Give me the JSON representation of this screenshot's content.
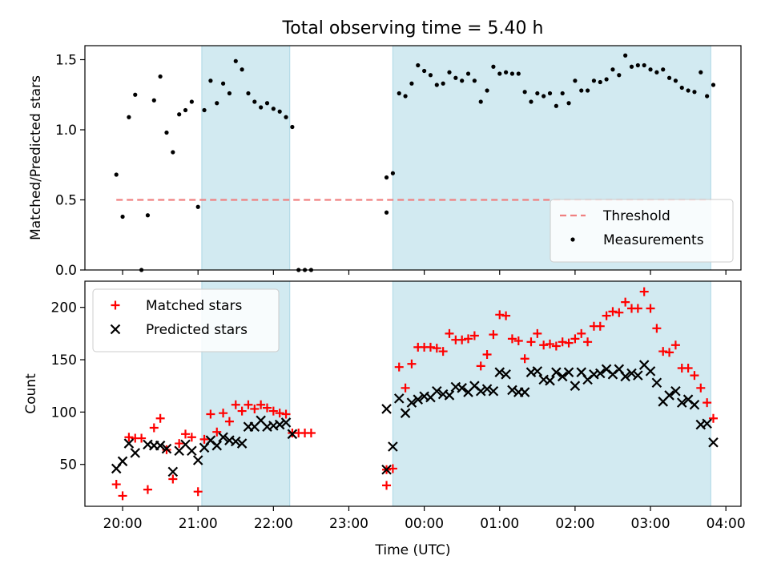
{
  "title": "Total observing time = 5.40 h",
  "colors": {
    "shade": "#add8e6",
    "threshold": "#f08080",
    "matched": "#ff0000",
    "predicted": "#000000",
    "measurement": "#000000"
  },
  "chart_data": [
    {
      "type": "scatter",
      "ylabel": "Matched/Predicted stars",
      "ylim": [
        0,
        1.6
      ],
      "yticks": [
        "0.0",
        "0.5",
        "1.0",
        "1.5"
      ],
      "xlim_hours": [
        19.5,
        28.2
      ],
      "shaded_spans": [
        [
          "21:03",
          "22:13"
        ],
        [
          "23:35",
          "03:48"
        ]
      ],
      "threshold": {
        "name": "Threshold",
        "value": 0.5,
        "x": [
          "19:55",
          "03:48"
        ]
      },
      "legend": {
        "position": "lower-right",
        "entries": [
          "Threshold",
          "Measurements"
        ]
      },
      "series": [
        {
          "name": "Measurements",
          "points": [
            [
              "19:55",
              0.68
            ],
            [
              "20:00",
              0.38
            ],
            [
              "20:05",
              1.09
            ],
            [
              "20:10",
              1.25
            ],
            [
              "20:15",
              0.0
            ],
            [
              "20:20",
              0.39
            ],
            [
              "20:25",
              1.21
            ],
            [
              "20:30",
              1.38
            ],
            [
              "20:35",
              0.98
            ],
            [
              "20:40",
              0.84
            ],
            [
              "20:45",
              1.11
            ],
            [
              "20:50",
              1.14
            ],
            [
              "20:55",
              1.2
            ],
            [
              "21:00",
              0.45
            ],
            [
              "21:05",
              1.14
            ],
            [
              "21:10",
              1.35
            ],
            [
              "21:15",
              1.19
            ],
            [
              "21:20",
              1.33
            ],
            [
              "21:25",
              1.26
            ],
            [
              "21:30",
              1.49
            ],
            [
              "21:35",
              1.43
            ],
            [
              "21:40",
              1.26
            ],
            [
              "21:45",
              1.2
            ],
            [
              "21:50",
              1.16
            ],
            [
              "21:55",
              1.19
            ],
            [
              "22:00",
              1.15
            ],
            [
              "22:05",
              1.13
            ],
            [
              "22:10",
              1.09
            ],
            [
              "22:15",
              1.02
            ],
            [
              "22:20",
              0.0
            ],
            [
              "22:25",
              0.0
            ],
            [
              "22:30",
              0.0
            ],
            [
              "23:30",
              0.66
            ],
            [
              "23:30",
              0.41
            ],
            [
              "23:35",
              0.69
            ],
            [
              "23:40",
              1.26
            ],
            [
              "23:45",
              1.24
            ],
            [
              "23:50",
              1.33
            ],
            [
              "23:55",
              1.46
            ],
            [
              "00:00",
              1.42
            ],
            [
              "00:05",
              1.39
            ],
            [
              "00:10",
              1.32
            ],
            [
              "00:15",
              1.33
            ],
            [
              "00:20",
              1.41
            ],
            [
              "00:25",
              1.37
            ],
            [
              "00:30",
              1.35
            ],
            [
              "00:35",
              1.4
            ],
            [
              "00:40",
              1.35
            ],
            [
              "00:45",
              1.2
            ],
            [
              "00:50",
              1.28
            ],
            [
              "00:55",
              1.45
            ],
            [
              "01:00",
              1.4
            ],
            [
              "01:05",
              1.41
            ],
            [
              "01:10",
              1.4
            ],
            [
              "01:15",
              1.4
            ],
            [
              "01:20",
              1.27
            ],
            [
              "01:25",
              1.2
            ],
            [
              "01:30",
              1.26
            ],
            [
              "01:35",
              1.24
            ],
            [
              "01:40",
              1.26
            ],
            [
              "01:45",
              1.17
            ],
            [
              "01:50",
              1.26
            ],
            [
              "01:55",
              1.19
            ],
            [
              "02:00",
              1.35
            ],
            [
              "02:05",
              1.28
            ],
            [
              "02:10",
              1.28
            ],
            [
              "02:15",
              1.35
            ],
            [
              "02:20",
              1.34
            ],
            [
              "02:25",
              1.36
            ],
            [
              "02:30",
              1.43
            ],
            [
              "02:35",
              1.39
            ],
            [
              "02:40",
              1.53
            ],
            [
              "02:45",
              1.45
            ],
            [
              "02:50",
              1.46
            ],
            [
              "02:55",
              1.46
            ],
            [
              "03:00",
              1.43
            ],
            [
              "03:05",
              1.41
            ],
            [
              "03:10",
              1.43
            ],
            [
              "03:15",
              1.37
            ],
            [
              "03:20",
              1.35
            ],
            [
              "03:25",
              1.3
            ],
            [
              "03:30",
              1.28
            ],
            [
              "03:35",
              1.27
            ],
            [
              "03:40",
              1.41
            ],
            [
              "03:45",
              1.24
            ],
            [
              "03:50",
              1.32
            ]
          ]
        }
      ]
    },
    {
      "type": "scatter",
      "ylabel": "Count",
      "xlabel": "Time (UTC)",
      "ylim": [
        10,
        225
      ],
      "yticks": [
        "50",
        "100",
        "150",
        "200"
      ],
      "xlim_hours": [
        19.5,
        28.2
      ],
      "xticks": [
        "20:00",
        "21:00",
        "22:00",
        "23:00",
        "00:00",
        "01:00",
        "02:00",
        "03:00",
        "04:00"
      ],
      "shaded_spans": [
        [
          "21:03",
          "22:13"
        ],
        [
          "23:35",
          "03:48"
        ]
      ],
      "legend": {
        "position": "upper-left",
        "entries": [
          "Matched stars",
          "Predicted stars"
        ]
      },
      "series": [
        {
          "name": "Matched stars",
          "marker": "+",
          "points": [
            [
              "19:55",
              31
            ],
            [
              "20:00",
              20
            ],
            [
              "20:05",
              76
            ],
            [
              "20:10",
              75
            ],
            [
              "20:15",
              75
            ],
            [
              "20:20",
              26
            ],
            [
              "20:25",
              85
            ],
            [
              "20:30",
              94
            ],
            [
              "20:35",
              64
            ],
            [
              "20:40",
              36
            ],
            [
              "20:45",
              70
            ],
            [
              "20:50",
              79
            ],
            [
              "20:55",
              76
            ],
            [
              "21:00",
              24
            ],
            [
              "21:05",
              74
            ],
            [
              "21:10",
              98
            ],
            [
              "21:15",
              81
            ],
            [
              "21:20",
              99
            ],
            [
              "21:25",
              91
            ],
            [
              "21:30",
              107
            ],
            [
              "21:35",
              101
            ],
            [
              "21:40",
              107
            ],
            [
              "21:45",
              103
            ],
            [
              "21:50",
              107
            ],
            [
              "21:55",
              104
            ],
            [
              "22:00",
              101
            ],
            [
              "22:05",
              99
            ],
            [
              "22:10",
              98
            ],
            [
              "22:15",
              80
            ],
            [
              "22:20",
              80
            ],
            [
              "22:25",
              80
            ],
            [
              "22:30",
              80
            ],
            [
              "23:30",
              30
            ],
            [
              "23:30",
              45
            ],
            [
              "23:35",
              46
            ],
            [
              "23:40",
              143
            ],
            [
              "23:45",
              123
            ],
            [
              "23:50",
              146
            ],
            [
              "23:55",
              162
            ],
            [
              "00:00",
              162
            ],
            [
              "00:05",
              162
            ],
            [
              "00:10",
              161
            ],
            [
              "00:15",
              158
            ],
            [
              "00:20",
              175
            ],
            [
              "00:25",
              169
            ],
            [
              "00:30",
              169
            ],
            [
              "00:35",
              170
            ],
            [
              "00:40",
              173
            ],
            [
              "00:45",
              144
            ],
            [
              "00:50",
              155
            ],
            [
              "00:55",
              174
            ],
            [
              "01:00",
              193
            ],
            [
              "01:05",
              192
            ],
            [
              "01:10",
              170
            ],
            [
              "01:15",
              168
            ],
            [
              "01:20",
              151
            ],
            [
              "01:25",
              167
            ],
            [
              "01:30",
              175
            ],
            [
              "01:35",
              164
            ],
            [
              "01:40",
              165
            ],
            [
              "01:45",
              163
            ],
            [
              "01:50",
              167
            ],
            [
              "01:55",
              166
            ],
            [
              "02:00",
              170
            ],
            [
              "02:05",
              175
            ],
            [
              "02:10",
              167
            ],
            [
              "02:15",
              182
            ],
            [
              "02:20",
              182
            ],
            [
              "02:25",
              192
            ],
            [
              "02:30",
              196
            ],
            [
              "02:35",
              195
            ],
            [
              "02:40",
              205
            ],
            [
              "02:45",
              199
            ],
            [
              "02:50",
              199
            ],
            [
              "02:55",
              215
            ],
            [
              "03:00",
              199
            ],
            [
              "03:05",
              180
            ],
            [
              "03:10",
              158
            ],
            [
              "03:15",
              157
            ],
            [
              "03:20",
              164
            ],
            [
              "03:25",
              142
            ],
            [
              "03:30",
              142
            ],
            [
              "03:35",
              135
            ],
            [
              "03:40",
              123
            ],
            [
              "03:45",
              109
            ],
            [
              "03:50",
              94
            ]
          ]
        },
        {
          "name": "Predicted stars",
          "marker": "x",
          "points": [
            [
              "19:55",
              46
            ],
            [
              "20:00",
              53
            ],
            [
              "20:05",
              70
            ],
            [
              "20:10",
              61
            ],
            [
              "20:20",
              69
            ],
            [
              "20:25",
              68
            ],
            [
              "20:30",
              68
            ],
            [
              "20:35",
              65
            ],
            [
              "20:40",
              43
            ],
            [
              "20:45",
              63
            ],
            [
              "20:50",
              69
            ],
            [
              "20:55",
              63
            ],
            [
              "21:00",
              54
            ],
            [
              "21:05",
              66
            ],
            [
              "21:10",
              73
            ],
            [
              "21:15",
              68
            ],
            [
              "21:20",
              76
            ],
            [
              "21:25",
              73
            ],
            [
              "21:30",
              72
            ],
            [
              "21:35",
              70
            ],
            [
              "21:40",
              86
            ],
            [
              "21:45",
              86
            ],
            [
              "21:50",
              92
            ],
            [
              "21:55",
              86
            ],
            [
              "22:00",
              87
            ],
            [
              "22:05",
              88
            ],
            [
              "22:10",
              90
            ],
            [
              "22:15",
              79
            ],
            [
              "23:30",
              103
            ],
            [
              "23:30",
              45
            ],
            [
              "23:35",
              67
            ],
            [
              "23:40",
              113
            ],
            [
              "23:45",
              99
            ],
            [
              "23:50",
              109
            ],
            [
              "23:55",
              112
            ],
            [
              "00:00",
              115
            ],
            [
              "00:05",
              114
            ],
            [
              "00:10",
              120
            ],
            [
              "00:15",
              117
            ],
            [
              "00:20",
              116
            ],
            [
              "00:25",
              124
            ],
            [
              "00:30",
              123
            ],
            [
              "00:35",
              119
            ],
            [
              "00:40",
              125
            ],
            [
              "00:45",
              120
            ],
            [
              "00:50",
              122
            ],
            [
              "00:55",
              120
            ],
            [
              "01:00",
              138
            ],
            [
              "01:05",
              136
            ],
            [
              "01:10",
              121
            ],
            [
              "01:15",
              119
            ],
            [
              "01:20",
              119
            ],
            [
              "01:25",
              138
            ],
            [
              "01:30",
              139
            ],
            [
              "01:35",
              131
            ],
            [
              "01:40",
              130
            ],
            [
              "01:45",
              138
            ],
            [
              "01:50",
              134
            ],
            [
              "01:55",
              138
            ],
            [
              "02:00",
              125
            ],
            [
              "02:05",
              138
            ],
            [
              "02:10",
              131
            ],
            [
              "02:15",
              136
            ],
            [
              "02:20",
              137
            ],
            [
              "02:25",
              141
            ],
            [
              "02:30",
              136
            ],
            [
              "02:35",
              141
            ],
            [
              "02:40",
              134
            ],
            [
              "02:45",
              137
            ],
            [
              "02:50",
              135
            ],
            [
              "02:55",
              145
            ],
            [
              "03:00",
              139
            ],
            [
              "03:05",
              128
            ],
            [
              "03:10",
              110
            ],
            [
              "03:15",
              116
            ],
            [
              "03:20",
              120
            ],
            [
              "03:25",
              109
            ],
            [
              "03:30",
              112
            ],
            [
              "03:35",
              107
            ],
            [
              "03:40",
              88
            ],
            [
              "03:45",
              89
            ],
            [
              "03:50",
              71
            ]
          ]
        }
      ]
    }
  ]
}
